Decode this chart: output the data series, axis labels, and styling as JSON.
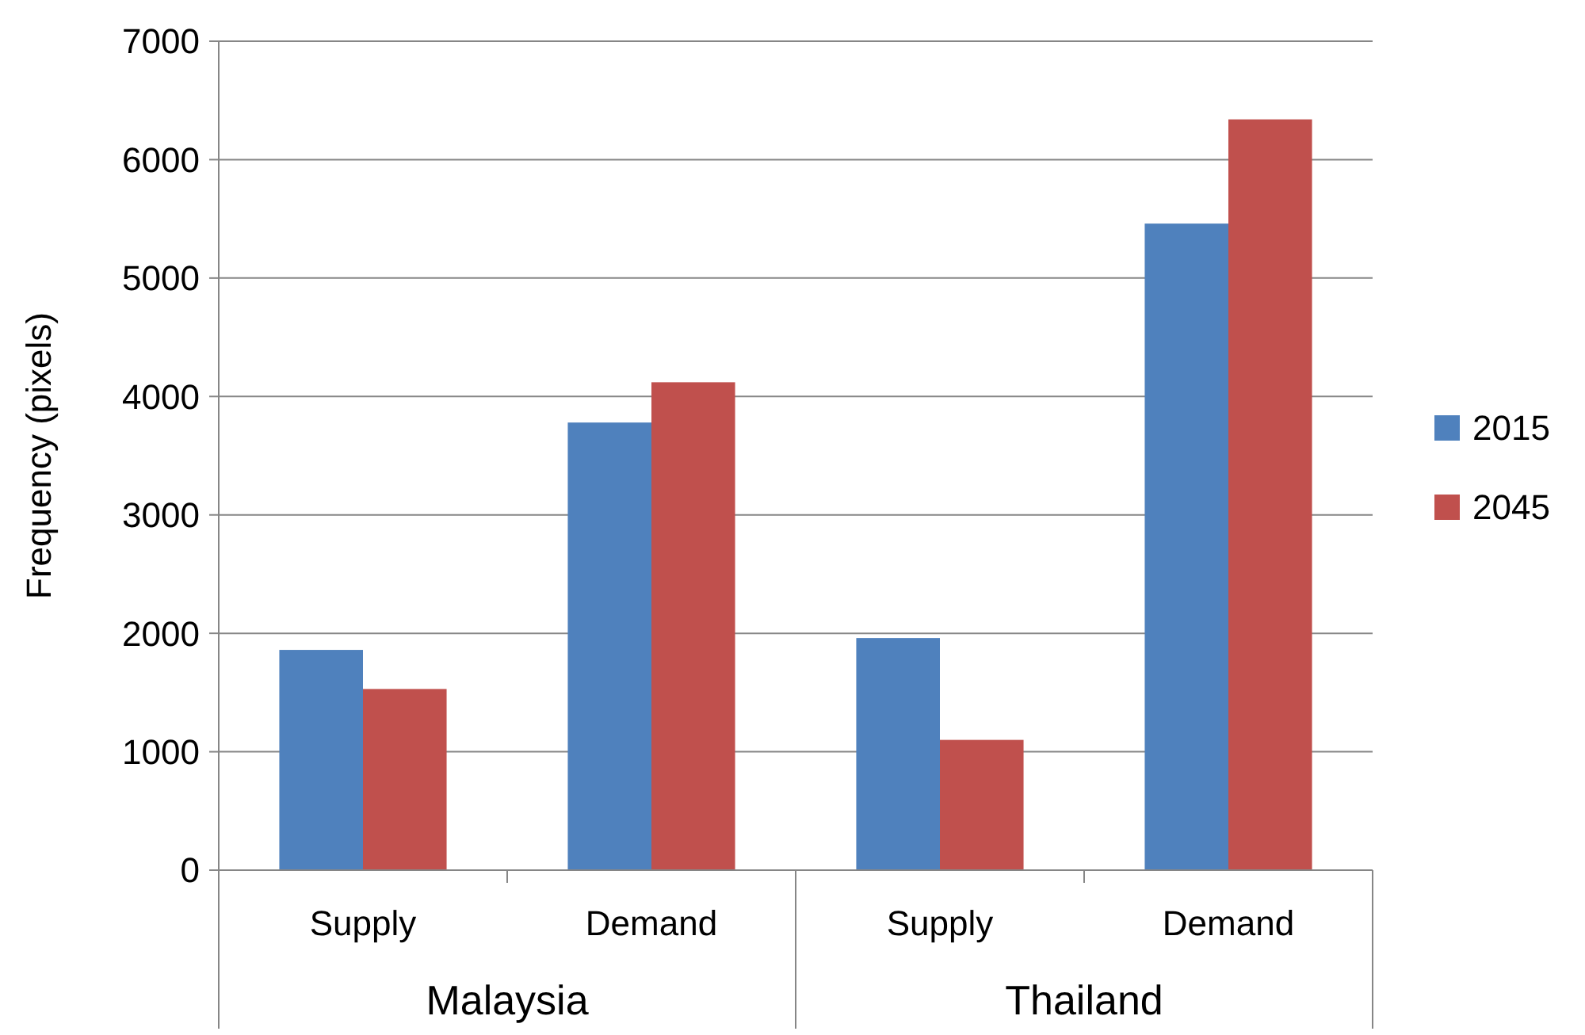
{
  "chart_data": {
    "type": "bar",
    "ylabel": "Frequency (pixels)",
    "categories": [
      "Supply",
      "Demand",
      "Supply",
      "Demand"
    ],
    "series": [
      {
        "name": "2015",
        "color": "#4f81bd",
        "values": [
          1860,
          3780,
          1960,
          5460
        ]
      },
      {
        "name": "2045",
        "color": "#c0504d",
        "values": [
          1530,
          4120,
          1100,
          6340
        ]
      }
    ],
    "annotations": [
      "Malaysia",
      "Thailand"
    ],
    "ylim": [
      0,
      7000
    ],
    "yticks": [
      0,
      1000,
      2000,
      3000,
      4000,
      5000,
      6000,
      7000
    ],
    "grid": "y",
    "legend": "right"
  }
}
